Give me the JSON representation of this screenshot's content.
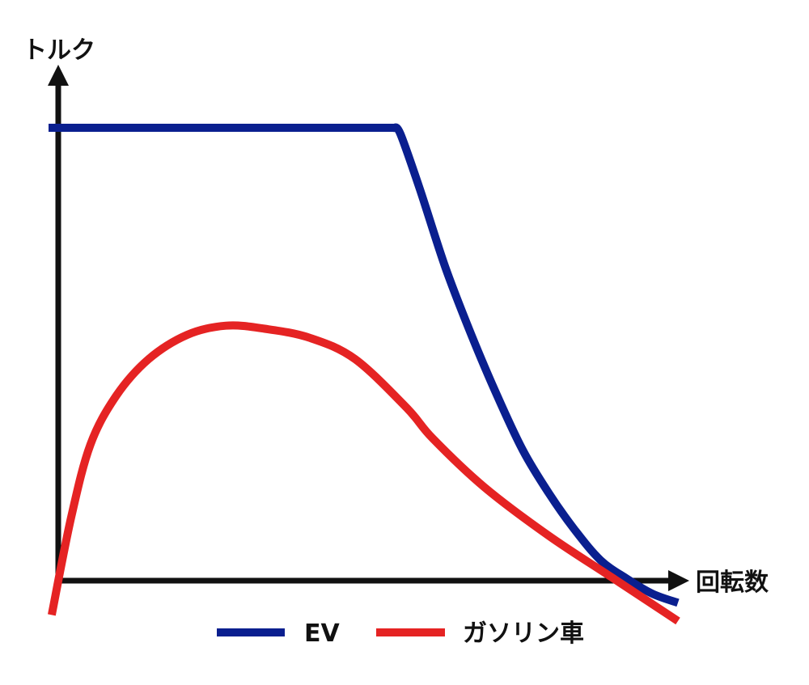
{
  "chart_data": {
    "type": "line",
    "title": "",
    "xlabel": "回転数",
    "ylabel": "トルク",
    "x_ticks": false,
    "y_ticks": false,
    "grid": false,
    "legend_position": "bottom-center",
    "xlim": [
      0,
      100
    ],
    "ylim": [
      0,
      100
    ],
    "series": [
      {
        "name": "EV",
        "color": "#0a1f8f",
        "x": [
          2.5,
          56,
          57,
          60,
          64,
          68,
          72,
          76,
          80,
          84,
          88,
          92,
          96,
          100
        ],
        "y": [
          100,
          100,
          99,
          90,
          77,
          66,
          56,
          47,
          40,
          34,
          29,
          26,
          23.5,
          22
        ]
      },
      {
        "name": "ガソリン車",
        "color": "#e52323",
        "x": [
          3,
          6,
          9,
          13,
          18,
          24,
          30,
          36,
          43,
          50,
          58,
          62,
          70,
          80,
          90,
          100
        ],
        "y": [
          20,
          36,
          48,
          56,
          62,
          66,
          67.5,
          67,
          65.5,
          62,
          54,
          49,
          41,
          33,
          26,
          19
        ]
      }
    ]
  }
}
